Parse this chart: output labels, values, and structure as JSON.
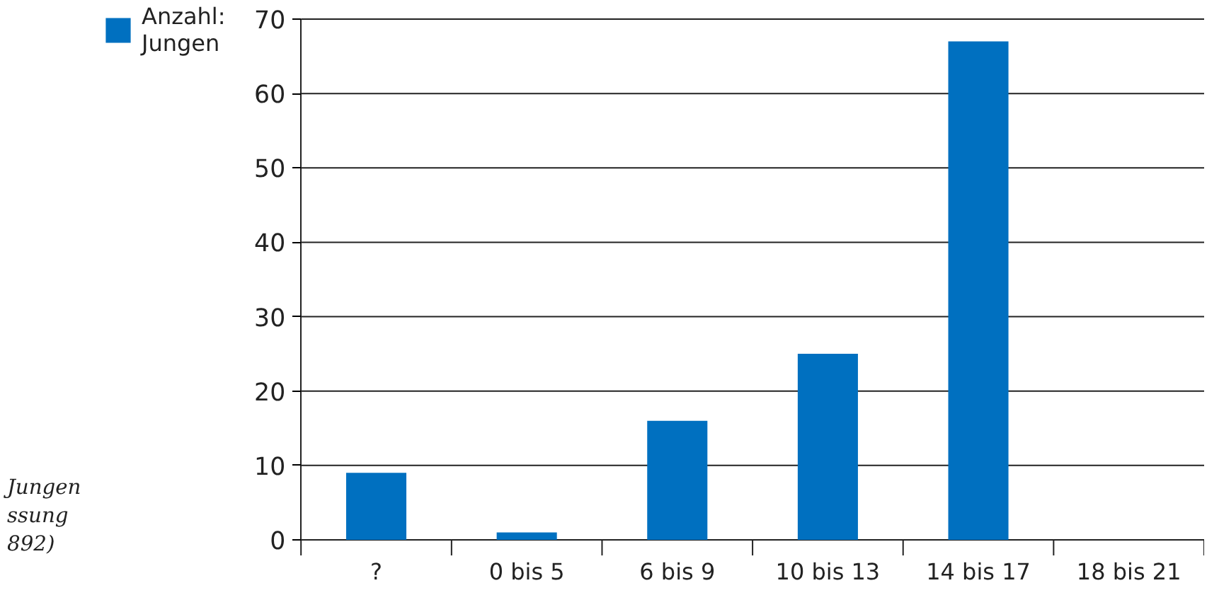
{
  "chart_data": {
    "type": "bar",
    "categories": [
      "?",
      "0 bis 5",
      "6 bis 9",
      "10 bis 13",
      "14 bis 17",
      "18 bis 21"
    ],
    "series": [
      {
        "name": "Anzahl:\nJungen",
        "color": "#0070c0",
        "values": [
          9,
          1,
          16,
          25,
          67,
          0
        ]
      }
    ],
    "ylim": [
      0,
      70
    ],
    "yticks": [
      0,
      10,
      20,
      30,
      40,
      50,
      60,
      70
    ],
    "grid": "y",
    "legend": "top left",
    "annotations": [
      "Jungen",
      "ssung",
      "892)"
    ]
  }
}
